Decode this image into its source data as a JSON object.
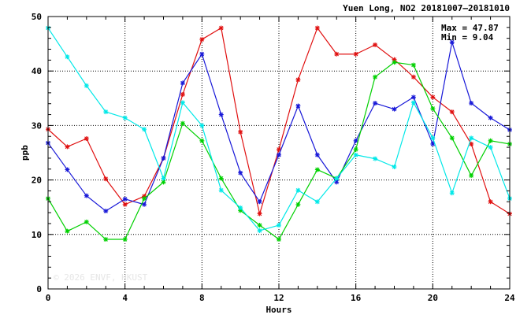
{
  "chart_data": {
    "type": "line",
    "title": "Yuen Long, NO2 20181007—20181010",
    "xlabel": "Hours",
    "ylabel": "ppb",
    "xlim": [
      0,
      24
    ],
    "ylim": [
      0,
      50
    ],
    "xticks": [
      0,
      4,
      8,
      12,
      16,
      20,
      24
    ],
    "yticks": [
      0,
      10,
      20,
      30,
      40,
      50
    ],
    "grid": true,
    "stats": {
      "max_text": "Max = 47.87",
      "min_text": "Min =  9.04"
    },
    "watermark": "© 2026  ENVF, HKUST",
    "series": [
      {
        "color": "#e01010",
        "values": [
          29.3,
          26.1,
          27.6,
          20.2,
          15.5,
          17.0,
          24.0,
          35.7,
          45.8,
          47.9,
          28.8,
          13.8,
          25.6,
          38.4,
          47.9,
          43.1,
          43.1,
          44.8,
          42.1,
          38.9,
          35.2,
          32.5,
          26.6,
          16.0,
          13.8
        ]
      },
      {
        "color": "#1818d8",
        "values": [
          26.8,
          21.9,
          17.1,
          14.3,
          16.5,
          15.5,
          24.0,
          37.8,
          43.1,
          32.0,
          21.3,
          16.0,
          24.6,
          33.6,
          24.6,
          19.6,
          27.2,
          34.1,
          33.0,
          35.2,
          26.6,
          45.3,
          34.1,
          31.4,
          29.2
        ]
      },
      {
        "color": "#00d000",
        "values": [
          16.6,
          10.6,
          12.3,
          9.1,
          9.1,
          16.6,
          19.6,
          30.4,
          27.2,
          20.3,
          14.4,
          11.7,
          9.1,
          15.5,
          21.9,
          20.3,
          25.6,
          38.9,
          41.6,
          41.1,
          33.1,
          27.7,
          20.8,
          27.2,
          26.6
        ]
      },
      {
        "color": "#00e8e8",
        "values": [
          47.9,
          42.6,
          37.3,
          32.5,
          31.4,
          29.3,
          20.3,
          34.2,
          30.0,
          18.1,
          14.9,
          10.7,
          11.7,
          18.1,
          16.0,
          20.3,
          24.6,
          23.9,
          22.4,
          34.2,
          27.7,
          17.6,
          27.7,
          26.0,
          16.6
        ]
      }
    ]
  }
}
